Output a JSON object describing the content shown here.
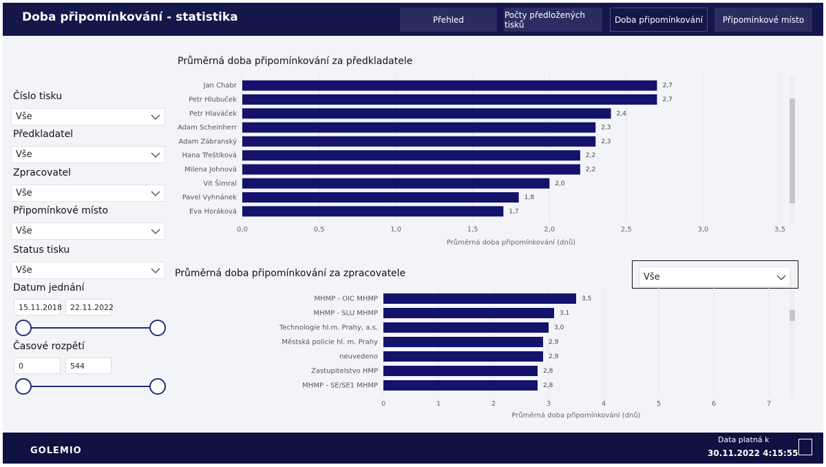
{
  "header": {
    "title": "Doba připomínkování - statistika",
    "nav": [
      "Přehled",
      "Počty předložených tisků",
      "Doba připomínkování",
      "Připomínkové místo"
    ]
  },
  "filters": {
    "dropdowns": [
      {
        "label": "Číslo tisku",
        "value": "Vše"
      },
      {
        "label": "Předkladatel",
        "value": "Vše"
      },
      {
        "label": "Zpracovatel",
        "value": "Vše"
      },
      {
        "label": "Připomínkové místo",
        "value": "Vše"
      },
      {
        "label": "Status tisku",
        "value": "Vše"
      }
    ],
    "date": {
      "label": "Datum jednání",
      "from": "15.11.2018",
      "to": "22.11.2022"
    },
    "span": {
      "label": "Časové rozpětí",
      "from": 0,
      "to": 544
    }
  },
  "chart_data": [
    {
      "type": "bar",
      "orientation": "horizontal",
      "title": "Průměrná doba připomínkování za předkladatele",
      "categories": [
        "Jan Chabr",
        "Petr Hlubuček",
        "Petr Hlaváček",
        "Adam Scheinherr",
        "Adam Zábranský",
        "Hana Třeštíková",
        "Milena Johnová",
        "Vít Šimral",
        "Pavel Vyhnánek",
        "Eva Horáková"
      ],
      "values": [
        2.7,
        2.7,
        2.4,
        2.3,
        2.3,
        2.2,
        2.2,
        2.0,
        1.8,
        1.7
      ],
      "value_labels": [
        "2,7",
        "2,7",
        "2,4",
        "2,3",
        "2,3",
        "2,2",
        "2,2",
        "2,0",
        "1,8",
        "1,7"
      ],
      "color": "#13136b",
      "xlim": [
        0,
        3.5
      ],
      "xticks": [
        {
          "value": 0,
          "label": "0,0"
        },
        {
          "value": 0.5,
          "label": "0,5"
        },
        {
          "value": 1,
          "label": "1,0"
        },
        {
          "value": 1.5,
          "label": "1,5"
        },
        {
          "value": 2,
          "label": "2,0"
        },
        {
          "value": 2.5,
          "label": "2,5"
        },
        {
          "value": 3,
          "label": "3,0"
        },
        {
          "value": 3.5,
          "label": "3,5"
        }
      ],
      "x_label": "Průměrná doba připomínkování (dnů)",
      "grid": true
    },
    {
      "type": "bar",
      "orientation": "horizontal",
      "title": "Průměrná doba připomínkování za zpracovatele",
      "filter_value": "Vše",
      "categories": [
        "MHMP - OIC MHMP",
        "MHMP - SLU MHMP",
        "Technologie hl.m. Prahy, a.s.",
        "Městská policie hl. m. Prahy",
        "neuvedeno",
        "Zastupitelstvo HMP",
        "MHMP - SE/SE1 MHMP"
      ],
      "values": [
        3.5,
        3.1,
        3.0,
        2.9,
        2.9,
        2.8,
        2.8
      ],
      "value_labels": [
        "3,5",
        "3,1",
        "3,0",
        "2,9",
        "2,9",
        "2,8",
        "2,8"
      ],
      "color": "#13136b",
      "xlim": [
        0,
        7.2
      ],
      "xticks": [
        0,
        1,
        2,
        3,
        4,
        5,
        6,
        7
      ],
      "x_label": "Průměrná doba připomínkování (dnů)",
      "grid": true
    }
  ],
  "footer": {
    "logo": "GOLEMIO",
    "data_label": "Data platná k",
    "timestamp": "30.11.2022 4:15:55"
  }
}
